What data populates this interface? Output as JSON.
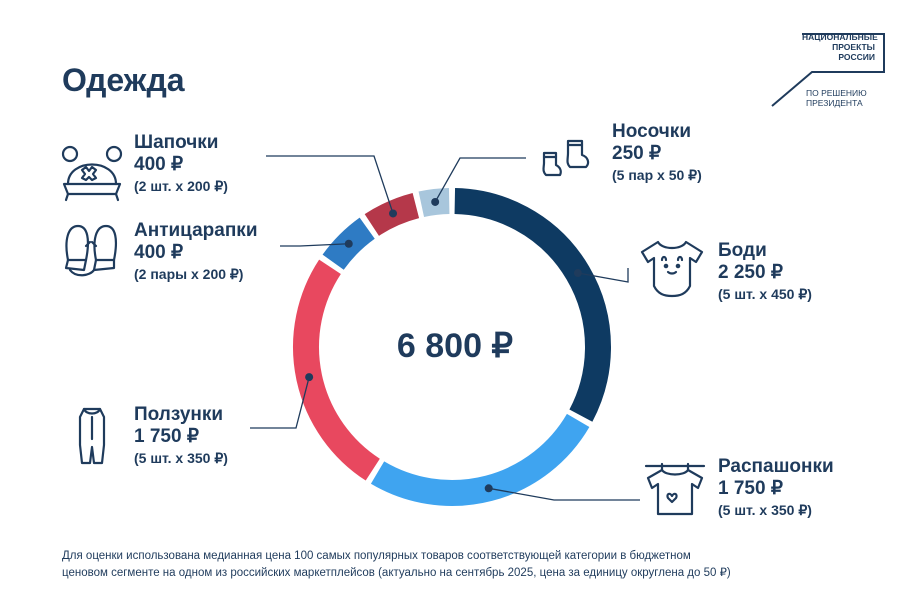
{
  "page": {
    "title": "Одежда"
  },
  "logo": {
    "line1": "НАЦИОНАЛЬНЫЕ",
    "line2": "ПРОЕКТЫ",
    "line3": "РОССИИ",
    "sub1": "ПО РЕШЕНИЮ",
    "sub2": "ПРЕЗИДЕНТА"
  },
  "chart_data": {
    "type": "pie",
    "total_label": "6 800 ₽",
    "total": 6800,
    "categories": [
      "Боди",
      "Распашонки",
      "Ползунки",
      "Антицарапки",
      "Шапочки",
      "Носочки"
    ],
    "values": [
      2250,
      1750,
      1750,
      400,
      400,
      250
    ],
    "price_labels": [
      "2 250 ₽",
      "1 750 ₽",
      "1 750 ₽",
      "400 ₽",
      "400 ₽",
      "250 ₽"
    ],
    "notes": [
      "(5 шт. х 450 ₽)",
      "(5 шт. х 350 ₽)",
      "(5 шт. х 350 ₽)",
      "(2 пары х 200 ₽)",
      "(2 шт. х 200 ₽)",
      "(5 пар х 50 ₽)"
    ],
    "colors": [
      "#0e3a62",
      "#3fa4f0",
      "#e8485f",
      "#2e7bc4",
      "#b5384a",
      "#a8c6dc"
    ],
    "icons": [
      "bodysuit-icon",
      "shirt-icon",
      "romper-icon",
      "mittens-icon",
      "baby-hat-icon",
      "socks-icon"
    ]
  },
  "footnote": {
    "line1": "Для оценки использована медианная цена 100 самых популярных товаров соответствующей категории в бюджетном",
    "line2": "ценовом сегменте на одном из российских маркетплейсов (актуально на сентябрь 2025, цена за единицу округлена до 50 ₽)"
  }
}
